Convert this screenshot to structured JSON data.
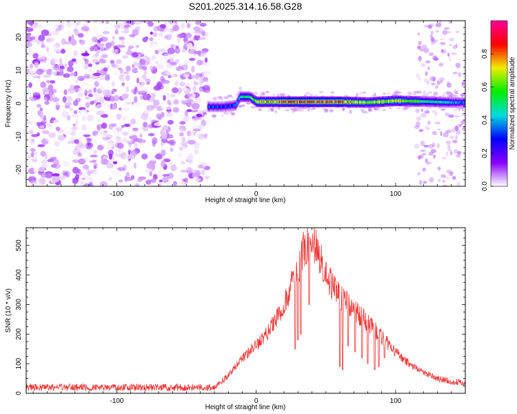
{
  "title": "S201.2025.314.16.58.G28",
  "chart_data": [
    {
      "type": "heatmap",
      "xlabel": "Height of straight line (km)",
      "ylabel": "Frequency (Hz)",
      "xlim": [
        -165,
        150
      ],
      "ylim": [
        -25,
        25
      ],
      "xticks": [
        -100,
        0,
        100
      ],
      "yticks": [
        -20,
        -10,
        0,
        10,
        20
      ],
      "colorbar": {
        "label": "Normalized spectral amplitude",
        "range": [
          0,
          1
        ],
        "ticks": [
          0.0,
          0.2,
          0.4,
          0.6,
          0.8
        ],
        "colors": [
          "#ffffff",
          "#8800ff",
          "#0000ff",
          "#00dddd",
          "#00ee00",
          "#eeee00",
          "#ff0000",
          "#ff0099"
        ]
      },
      "features": {
        "noise_region_x": [
          -165,
          -35
        ],
        "signal_line": {
          "x": [
            -35,
            -25,
            -15,
            -12,
            -5,
            0,
            20,
            40,
            60,
            80,
            100,
            120,
            140,
            150
          ],
          "y": [
            -1,
            -1,
            -0.5,
            2,
            2,
            0.5,
            0.5,
            0.5,
            0.5,
            0.3,
            0.8,
            0.6,
            0.3,
            0.3
          ],
          "amplitude": [
            0.35,
            0.3,
            0.35,
            0.45,
            0.5,
            0.7,
            0.8,
            0.85,
            0.8,
            0.6,
            0.7,
            0.5,
            0.4,
            0.35
          ]
        }
      }
    },
    {
      "type": "line",
      "xlabel": "Height of straight line (km)",
      "ylabel": "SNR (10 * v/v)",
      "xlim": [
        -165,
        150
      ],
      "ylim": [
        0,
        560
      ],
      "xticks": [
        -100,
        0,
        100
      ],
      "yticks": [
        0,
        100,
        200,
        300,
        400,
        500
      ],
      "color": "#ee3333",
      "envelope": {
        "x": [
          -165,
          -40,
          -30,
          -20,
          -10,
          0,
          10,
          20,
          30,
          35,
          40,
          45,
          50,
          60,
          70,
          80,
          90,
          100,
          110,
          120,
          130,
          140,
          150
        ],
        "y": [
          20,
          20,
          20,
          60,
          120,
          160,
          220,
          300,
          420,
          500,
          530,
          470,
          400,
          330,
          280,
          240,
          190,
          140,
          100,
          70,
          50,
          40,
          35
        ]
      },
      "dips": [
        {
          "x": 28,
          "y": 150
        },
        {
          "x": 30,
          "y": 180
        },
        {
          "x": 32,
          "y": 200
        },
        {
          "x": 38,
          "y": 300
        },
        {
          "x": 60,
          "y": 90
        },
        {
          "x": 62,
          "y": 80
        },
        {
          "x": 66,
          "y": 160
        },
        {
          "x": 71,
          "y": 140
        },
        {
          "x": 76,
          "y": 120
        },
        {
          "x": 80,
          "y": 100
        },
        {
          "x": 85,
          "y": 80
        },
        {
          "x": 88,
          "y": 90
        },
        {
          "x": 92,
          "y": 120
        }
      ]
    }
  ]
}
